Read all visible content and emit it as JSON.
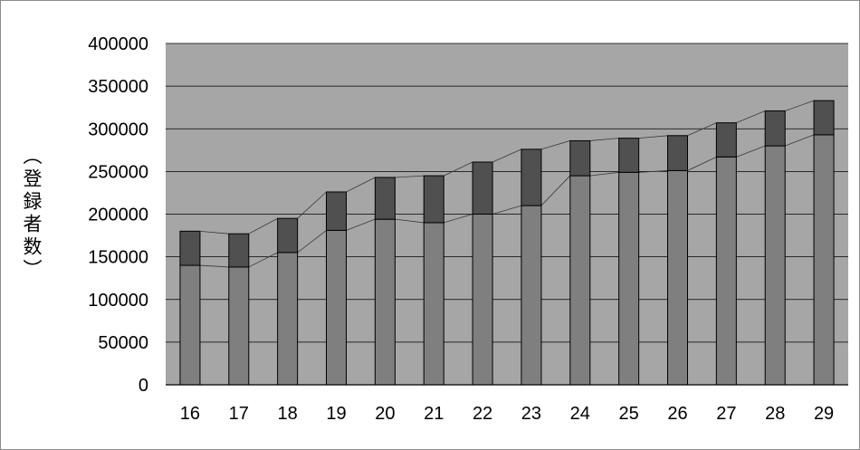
{
  "chart_data": {
    "type": "bar",
    "stacked": true,
    "categories": [
      "16",
      "17",
      "18",
      "19",
      "20",
      "21",
      "22",
      "23",
      "24",
      "25",
      "26",
      "27",
      "28",
      "29"
    ],
    "series": [
      {
        "values": [
          140000,
          138000,
          155000,
          181000,
          194000,
          190000,
          200000,
          210000,
          245000,
          249000,
          251000,
          267000,
          280000,
          293000
        ]
      },
      {
        "values": [
          40000,
          39000,
          40000,
          45000,
          49000,
          55000,
          61000,
          66000,
          41000,
          40000,
          41000,
          40000,
          41000,
          40000
        ]
      }
    ],
    "totals": [
      180000,
      177000,
      195000,
      226000,
      243000,
      245000,
      261000,
      276000,
      286000,
      289000,
      292000,
      307000,
      321000,
      333000
    ],
    "ylabel": "（登録者数）",
    "yticks": [
      "0",
      "50000",
      "100000",
      "150000",
      "200000",
      "250000",
      "300000",
      "350000",
      "400000"
    ],
    "ylim": [
      0,
      400000
    ],
    "grid": true,
    "connector_lines": true,
    "colors": {
      "plot_bg": "#a6a6a6",
      "lower": "#7f7f7f",
      "upper": "#505050",
      "grid": "#000000",
      "connector": "#3a3a3a"
    }
  }
}
